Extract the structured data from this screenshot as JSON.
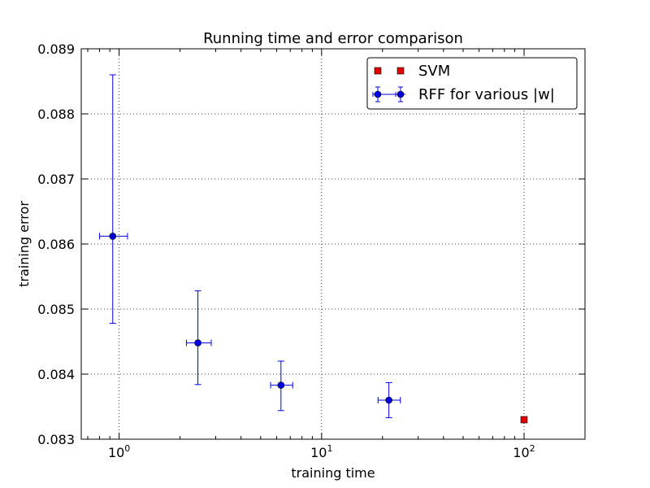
{
  "chart_data": {
    "type": "scatter",
    "title": "Running time and error comparison",
    "xlabel": "training time",
    "ylabel": "training error",
    "xscale": "log",
    "xlim": [
      0.65,
      200
    ],
    "ylim": [
      0.083,
      0.089
    ],
    "grid": true,
    "legend_position": "top-right",
    "x_tick_values": [
      1,
      10,
      100
    ],
    "x_tick_labels": [
      {
        "base": "10",
        "exp": "0"
      },
      {
        "base": "10",
        "exp": "1"
      },
      {
        "base": "10",
        "exp": "2"
      }
    ],
    "y_tick_values": [
      0.083,
      0.084,
      0.085,
      0.086,
      0.087,
      0.088,
      0.089
    ],
    "y_tick_labels": [
      "0.083",
      "0.084",
      "0.085",
      "0.086",
      "0.087",
      "0.088",
      "0.089"
    ],
    "series": [
      {
        "name": "SVM",
        "color": "#e00000",
        "marker": "square",
        "points": [
          {
            "x": 100,
            "y": 0.0833
          }
        ]
      },
      {
        "name": "RFF for various |w|",
        "color": "#0000dd",
        "marker": "circle",
        "errorbars": true,
        "points": [
          {
            "x": 0.93,
            "y": 0.08612,
            "xerr": [
              0.13,
              0.17
            ],
            "yerr": [
              0.00134,
              0.00248
            ]
          },
          {
            "x": 2.45,
            "y": 0.08448,
            "xerr": [
              0.3,
              0.4
            ],
            "yerr": [
              0.00064,
              0.0008
            ]
          },
          {
            "x": 6.3,
            "y": 0.08383,
            "xerr": [
              0.7,
              0.9
            ],
            "yerr": [
              0.00039,
              0.00037
            ]
          },
          {
            "x": 21.5,
            "y": 0.0836,
            "xerr": [
              2.5,
              3.0
            ],
            "yerr": [
              0.00027,
              0.00027
            ]
          }
        ]
      }
    ]
  }
}
